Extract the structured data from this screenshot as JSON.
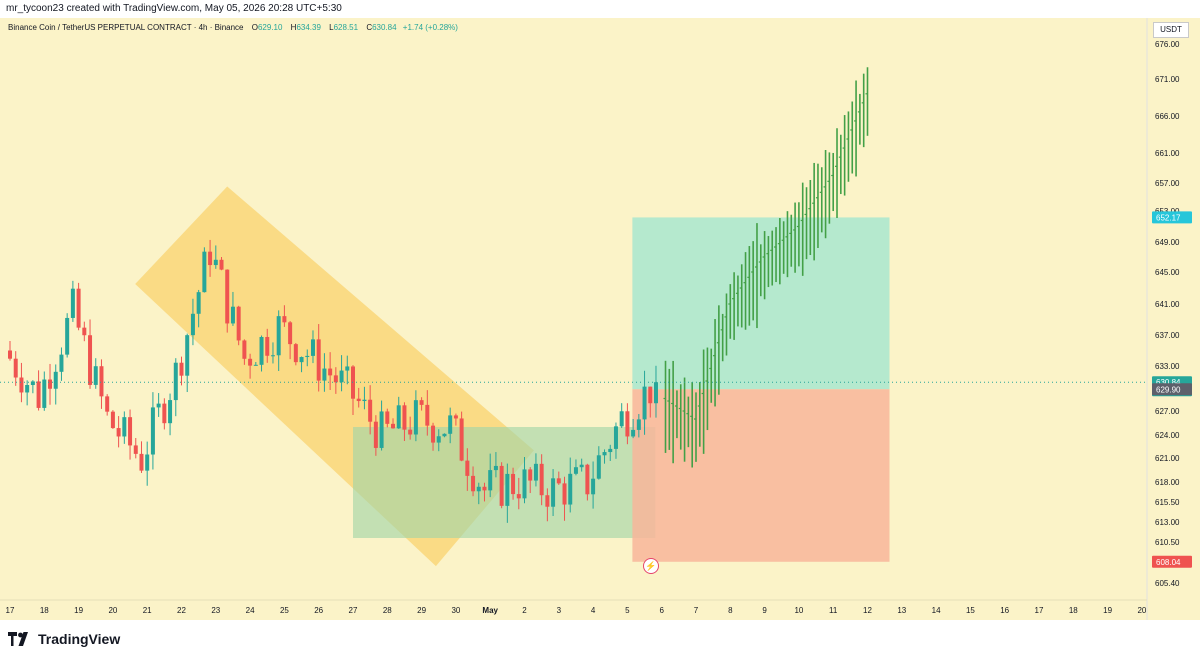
{
  "header": {
    "credit": "mr_tycoon23 created with TradingView.com, May 05, 2026 20:28 UTC+5:30"
  },
  "legend": {
    "symbol": "Binance Coin / TetherUS PERPETUAL CONTRACT · 4h · Binance",
    "o_label": "O",
    "o": "629.10",
    "h_label": "H",
    "h": "634.39",
    "l_label": "L",
    "l": "628.51",
    "c_label": "C",
    "c": "630.84",
    "change": "+1.74 (+0.28%)"
  },
  "currency_button": "USDT",
  "brand": {
    "name": "TradingView",
    "logo_icon": "tradingview-logo-icon"
  },
  "colors": {
    "up": "#26a69a",
    "down": "#ef5350",
    "channel": "#f9c74f",
    "range_box": "#a5d6a7",
    "target": "#a8e6cf",
    "stop": "#f8b59a",
    "projection": "#43a047",
    "price_line": "#26a69a"
  },
  "chart_data": {
    "type": "candlestick",
    "timeframe": "4h",
    "y_ticks": [
      "676.00",
      "671.00",
      "666.00",
      "661.00",
      "657.00",
      "653.00",
      "649.00",
      "645.00",
      "641.00",
      "637.00",
      "633.00",
      "627.00",
      "624.00",
      "621.00",
      "618.00",
      "615.50",
      "613.00",
      "610.50",
      "605.40"
    ],
    "x_ticks": [
      "17",
      "18",
      "19",
      "20",
      "21",
      "22",
      "23",
      "24",
      "25",
      "26",
      "27",
      "28",
      "29",
      "30",
      "May",
      "2",
      "3",
      "4",
      "5",
      "6",
      "7",
      "8",
      "9",
      "10",
      "11",
      "12",
      "13",
      "14",
      "15",
      "16",
      "17",
      "18",
      "19",
      "20"
    ],
    "price_badges": [
      {
        "label": "652.17",
        "role": "take-profit",
        "color": "#26c6da"
      },
      {
        "label": "630.84",
        "sublabel": "01:01:19",
        "role": "last-price",
        "color": "#26a69a"
      },
      {
        "label": "629.90",
        "role": "entry",
        "color": "#5d606b"
      },
      {
        "label": "608.04",
        "role": "stop-loss",
        "color": "#ef5350"
      }
    ],
    "daily_path": [
      {
        "day": "17",
        "o": 635,
        "c": 629
      },
      {
        "day": "18",
        "o": 629,
        "c": 640
      },
      {
        "day": "19",
        "o": 640,
        "c": 626
      },
      {
        "day": "20",
        "o": 626,
        "c": 621
      },
      {
        "day": "21",
        "o": 621,
        "c": 632
      },
      {
        "day": "22",
        "o": 632,
        "c": 648
      },
      {
        "day": "23",
        "o": 648,
        "c": 634
      },
      {
        "day": "24",
        "o": 634,
        "c": 638
      },
      {
        "day": "25",
        "o": 638,
        "c": 634
      },
      {
        "day": "26",
        "o": 634,
        "c": 630
      },
      {
        "day": "27",
        "o": 630,
        "c": 624
      },
      {
        "day": "28",
        "o": 624,
        "c": 626
      },
      {
        "day": "29",
        "o": 626,
        "c": 625
      },
      {
        "day": "30",
        "o": 625,
        "c": 617
      },
      {
        "day": "May",
        "o": 617,
        "c": 618
      },
      {
        "day": "2",
        "o": 618,
        "c": 617
      },
      {
        "day": "3",
        "o": 617,
        "c": 618
      },
      {
        "day": "4",
        "o": 618,
        "c": 626
      },
      {
        "day": "5",
        "o": 626,
        "c": 630.84
      }
    ],
    "projection_path": [
      {
        "day": "6",
        "price": 628
      },
      {
        "day": "7",
        "price": 625
      },
      {
        "day": "8",
        "price": 640
      },
      {
        "day": "9",
        "price": 646
      },
      {
        "day": "10",
        "price": 650
      },
      {
        "day": "11",
        "price": 657
      },
      {
        "day": "12",
        "price": 668
      }
    ],
    "annotations": {
      "descending_channel": {
        "start_day": "21",
        "end_day": "30"
      },
      "range_box": {
        "start_day": "27",
        "end_day": "5",
        "top": 625,
        "bottom": 611
      },
      "long_position": {
        "start_day": "5",
        "end_day": "12",
        "entry": 629.9,
        "target": 652.17,
        "stop": 608.04
      }
    }
  }
}
